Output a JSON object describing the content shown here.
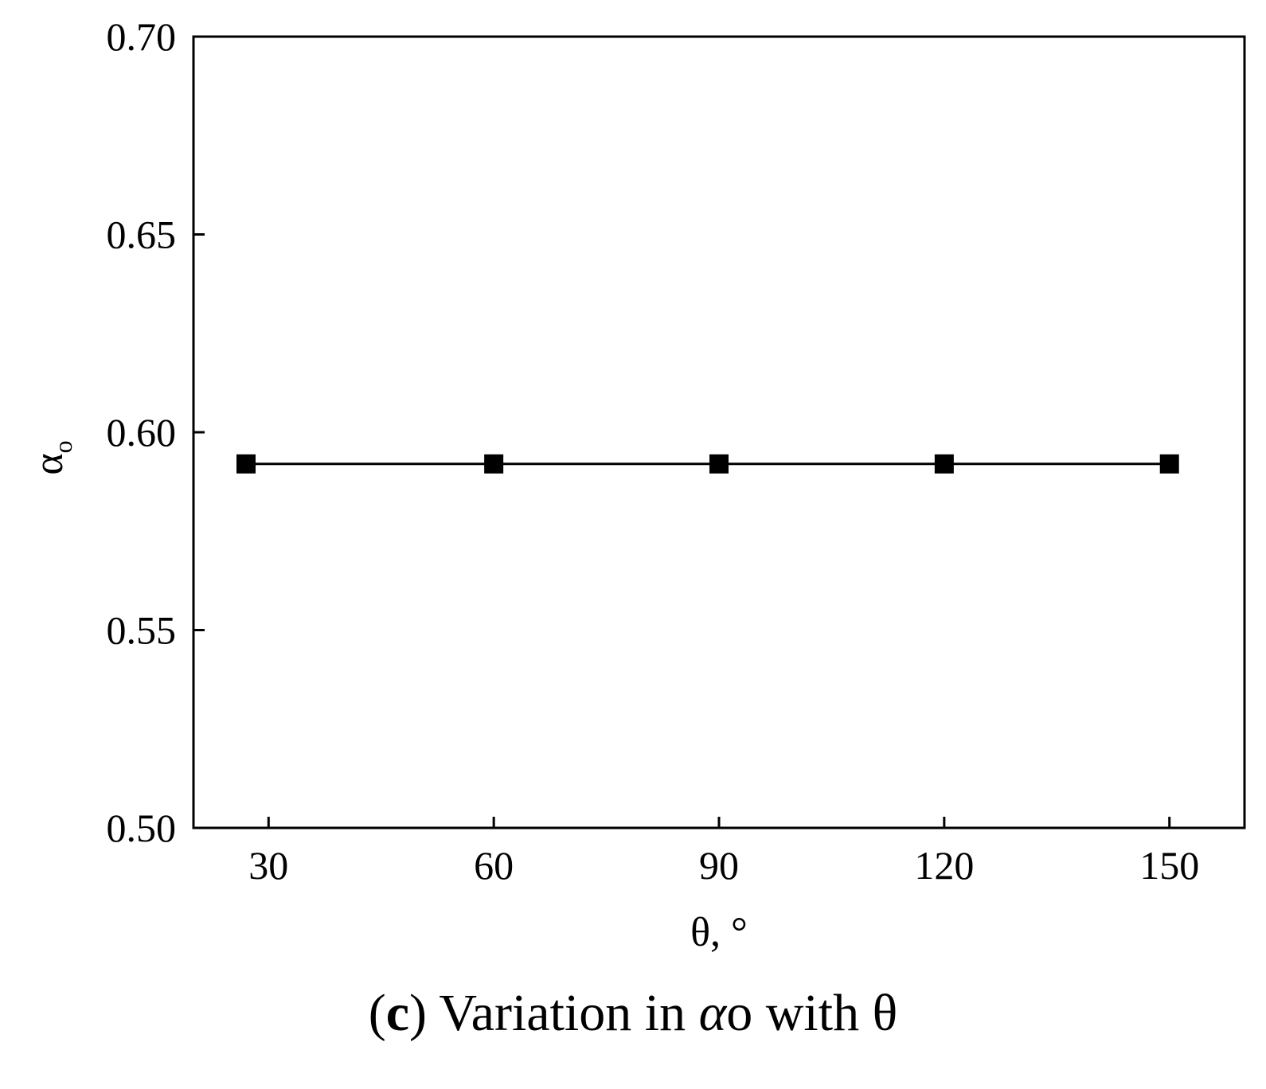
{
  "chart_data": {
    "type": "line",
    "x": [
      27,
      60,
      90,
      120,
      150
    ],
    "series": [
      {
        "values": [
          0.592,
          0.592,
          0.592,
          0.592,
          0.592
        ],
        "marker": "filled-square",
        "color": "#000000"
      }
    ],
    "xlabel": "θ, °",
    "ylabel": "α",
    "ylabel_subscript": "o",
    "xlim": [
      20,
      160
    ],
    "ylim": [
      0.5,
      0.7
    ],
    "xticks": [
      30,
      60,
      90,
      120,
      150
    ],
    "xtick_labels": [
      "30",
      "60",
      "90",
      "120",
      "150"
    ],
    "yticks": [
      0.5,
      0.55,
      0.6,
      0.65,
      0.7
    ],
    "ytick_labels": [
      "0.50",
      "0.55",
      "0.60",
      "0.65",
      "0.70"
    ],
    "grid": false
  },
  "caption": {
    "open": "(",
    "letter": "c",
    "close": ")",
    "text_before": " Variation in ",
    "symbol": "α",
    "symbol_sub": "o",
    "text_after": " with θ"
  }
}
